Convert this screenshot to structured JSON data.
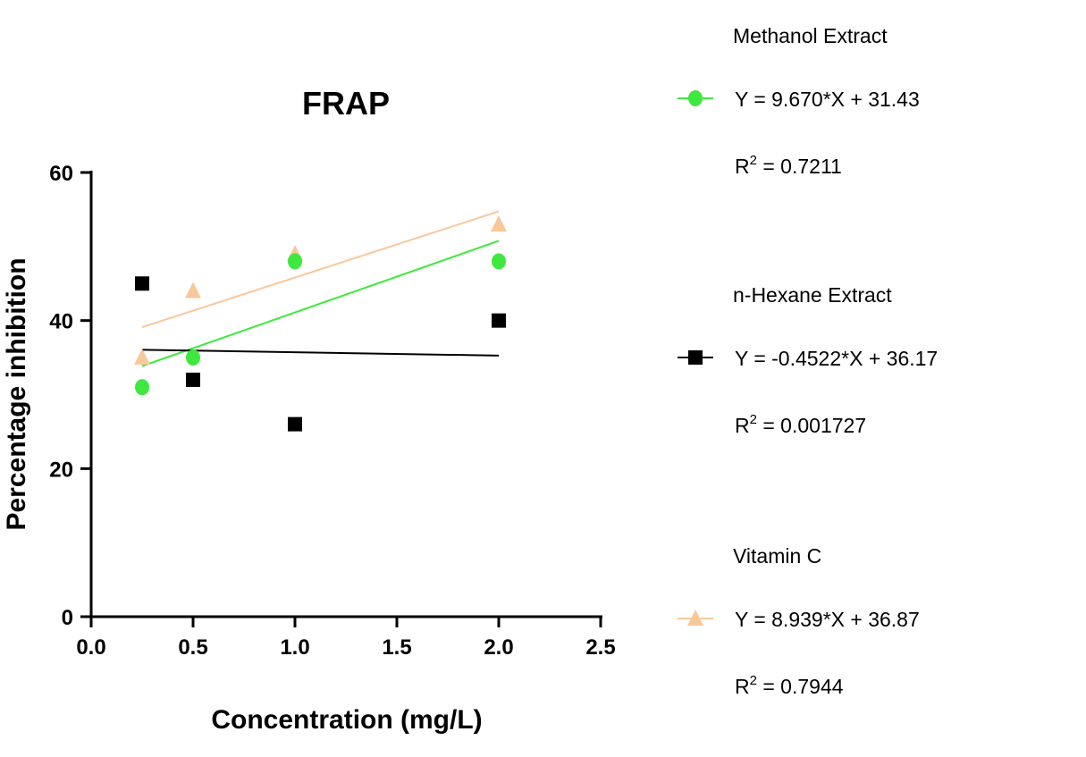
{
  "chart_data": {
    "type": "scatter",
    "title": "FRAP",
    "xlabel": "Concentration (mg/L)",
    "ylabel": "Percentage inhibition",
    "xlim": [
      0,
      2.5
    ],
    "ylim": [
      0,
      60
    ],
    "xticks": [
      "0.0",
      "0.5",
      "1.0",
      "1.5",
      "2.0",
      "2.5"
    ],
    "yticks": [
      "0",
      "20",
      "40",
      "60"
    ],
    "grid": false,
    "legend_placement": "right",
    "series": [
      {
        "name": "Methanol Extract",
        "marker": "circle",
        "color": "#3ee83e",
        "x": [
          0.25,
          0.5,
          1.0,
          2.0
        ],
        "y": [
          31,
          35,
          48,
          48
        ],
        "fit": {
          "slope": 9.67,
          "intercept": 31.43
        },
        "equation": "Y = 9.670*X + 31.43",
        "r2_label": "R",
        "r2_value": " = 0.7211"
      },
      {
        "name": "n-Hexane Extract",
        "marker": "square",
        "color": "#000000",
        "x": [
          0.25,
          0.5,
          1.0,
          2.0
        ],
        "y": [
          45,
          32,
          26,
          40
        ],
        "fit": {
          "slope": -0.4522,
          "intercept": 36.17
        },
        "equation": "Y = -0.4522*X + 36.17",
        "r2_label": "R",
        "r2_value": " = 0.001727"
      },
      {
        "name": "Vitamin C",
        "marker": "triangle",
        "color": "#f9c89a",
        "x": [
          0.25,
          0.5,
          1.0,
          2.0
        ],
        "y": [
          35,
          44,
          49,
          53
        ],
        "fit": {
          "slope": 8.939,
          "intercept": 36.87
        },
        "equation": "Y = 8.939*X + 36.87",
        "r2_label": "R",
        "r2_value": " = 0.7944"
      }
    ]
  }
}
